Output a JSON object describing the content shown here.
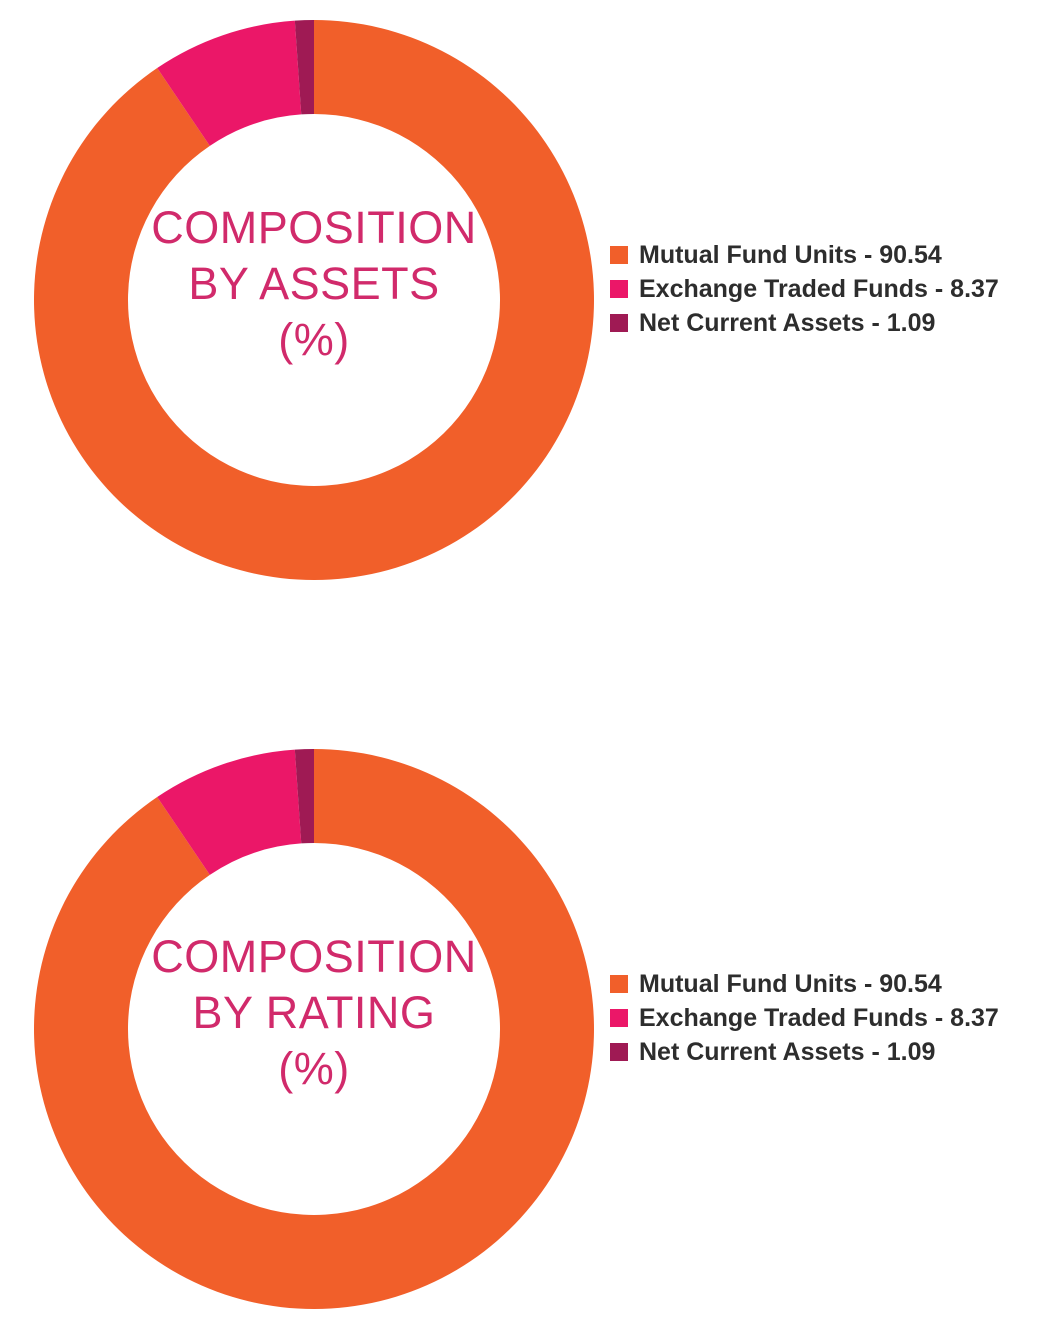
{
  "chart_data": [
    {
      "type": "pie",
      "title": "",
      "center_label": [
        "COMPOSITION",
        "BY ASSETS",
        "(%)"
      ],
      "legend_position": "right",
      "slices": [
        {
          "label": "Mutual Fund Units - 90.54",
          "value": 90.54,
          "color": "#f15f2a"
        },
        {
          "label": "Exchange Traded Funds - 8.37",
          "value": 8.37,
          "color": "#eb1768"
        },
        {
          "label": "Net Current Assets - 1.09",
          "value": 1.09,
          "color": "#9f1a54"
        }
      ]
    },
    {
      "type": "pie",
      "title": "",
      "center_label": [
        "COMPOSITION",
        "BY RATING",
        "(%)"
      ],
      "legend_position": "right",
      "slices": [
        {
          "label": "Mutual Fund Units - 90.54",
          "value": 90.54,
          "color": "#f15f2a"
        },
        {
          "label": "Exchange Traded Funds - 8.37",
          "value": 8.37,
          "color": "#eb1768"
        },
        {
          "label": "Net Current Assets - 1.09",
          "value": 1.09,
          "color": "#9f1a54"
        }
      ]
    }
  ]
}
